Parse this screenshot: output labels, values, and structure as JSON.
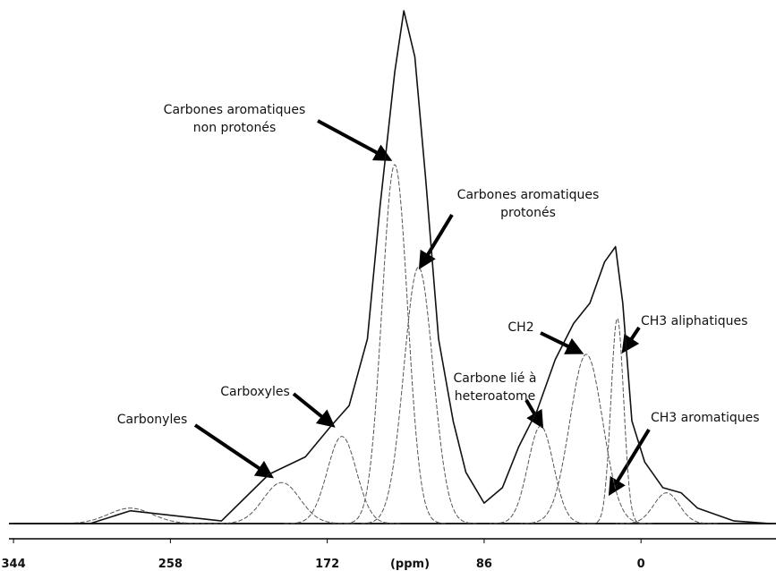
{
  "chart_data": {
    "type": "line",
    "xlabel": "(ppm)",
    "xlim": [
      346.5,
      -74
    ],
    "xticks": [
      344,
      258,
      172,
      86,
      0
    ],
    "ylim": [
      0,
      100
    ],
    "color": "#111111",
    "x": [
      344,
      302,
      280,
      230,
      204,
      184,
      170,
      160,
      150,
      143,
      135,
      130,
      124,
      118,
      111,
      103,
      96,
      86,
      76,
      67,
      57,
      47,
      37,
      28,
      20,
      14,
      10,
      5,
      -2,
      -12,
      -22,
      -31,
      -51,
      -71
    ],
    "values": [
      0,
      0,
      2.5,
      0.5,
      9.6,
      13,
      19,
      23,
      36,
      62,
      88,
      100,
      91,
      67,
      36,
      20,
      10,
      4,
      7,
      15,
      22,
      32,
      39,
      43,
      51,
      54,
      43,
      20,
      12,
      7,
      6,
      3,
      0.5,
      0
    ],
    "components": [
      {
        "center": 280,
        "height": 3,
        "width": 12
      },
      {
        "center": 197,
        "height": 8,
        "width": 10
      },
      {
        "center": 164,
        "height": 17,
        "width": 8
      },
      {
        "center": 135,
        "height": 70,
        "width": 7
      },
      {
        "center": 122,
        "height": 50,
        "width": 8
      },
      {
        "center": 55,
        "height": 19,
        "width": 7
      },
      {
        "center": 30,
        "height": 33,
        "width": 9
      },
      {
        "center": 13,
        "height": 40,
        "width": 3.5
      },
      {
        "center": -14,
        "height": 6,
        "width": 7
      }
    ],
    "annotations": [
      {
        "lines": [
          "Carbones aromatiques",
          "non protonés"
        ]
      },
      {
        "lines": [
          "Carbones aromatiques",
          "protonés"
        ]
      },
      {
        "lines": [
          "Carboxyles"
        ]
      },
      {
        "lines": [
          "Carbonyles"
        ]
      },
      {
        "lines": [
          "Carbone lié à",
          "heteroatome"
        ]
      },
      {
        "lines": [
          "CH2"
        ]
      },
      {
        "lines": [
          "CH3 aliphatiques"
        ]
      },
      {
        "lines": [
          "CH3 aromatiques"
        ]
      }
    ]
  }
}
